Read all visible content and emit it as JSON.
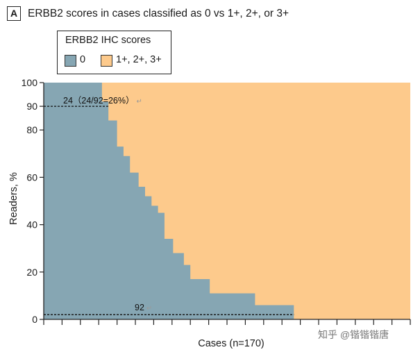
{
  "panel_label": "A",
  "chart_data": {
    "type": "area",
    "title": "ERBB2 scores in cases classified as 0 vs 1+, 2+, or 3+",
    "xlabel": "Cases (n=170)",
    "ylabel": "Readers, %",
    "x_range": [
      0,
      170
    ],
    "ylim": [
      0,
      100
    ],
    "yticks": [
      0,
      20,
      40,
      60,
      80,
      100
    ],
    "extra_ytick": 90,
    "x_tick_count": 20,
    "legend": {
      "title": "ERBB2 IHC scores",
      "position": "top-left",
      "entries": [
        {
          "label": "0",
          "color": "#86a6b3"
        },
        {
          "label": "1+, 2+, 3+",
          "color": "#fdca8c"
        }
      ]
    },
    "series": [
      {
        "name": "0",
        "description": "Percentage of readers scoring each case as 0 (cases sorted descending)",
        "steps": [
          {
            "x_start": 0,
            "x_end": 27,
            "value": 100
          },
          {
            "x_start": 27,
            "x_end": 30,
            "value": 92
          },
          {
            "x_start": 30,
            "x_end": 34,
            "value": 84
          },
          {
            "x_start": 34,
            "x_end": 37,
            "value": 73
          },
          {
            "x_start": 37,
            "x_end": 40,
            "value": 69
          },
          {
            "x_start": 40,
            "x_end": 44,
            "value": 62
          },
          {
            "x_start": 44,
            "x_end": 47,
            "value": 56
          },
          {
            "x_start": 47,
            "x_end": 50,
            "value": 52
          },
          {
            "x_start": 50,
            "x_end": 53,
            "value": 48
          },
          {
            "x_start": 53,
            "x_end": 56,
            "value": 45
          },
          {
            "x_start": 56,
            "x_end": 60,
            "value": 34
          },
          {
            "x_start": 60,
            "x_end": 65,
            "value": 28
          },
          {
            "x_start": 65,
            "x_end": 68,
            "value": 23
          },
          {
            "x_start": 68,
            "x_end": 77,
            "value": 17
          },
          {
            "x_start": 77,
            "x_end": 98,
            "value": 11
          },
          {
            "x_start": 98,
            "x_end": 116,
            "value": 6
          },
          {
            "x_start": 116,
            "x_end": 170,
            "value": 0
          }
        ]
      }
    ],
    "annotations": [
      {
        "text": "24（24/92=26%）",
        "line_y": 90,
        "x_from": 0,
        "x_to": 30
      },
      {
        "text": "92",
        "line_y": 2,
        "x_from": 0,
        "x_to": 116
      }
    ]
  },
  "watermark": "知乎 @锴锴锴唐"
}
